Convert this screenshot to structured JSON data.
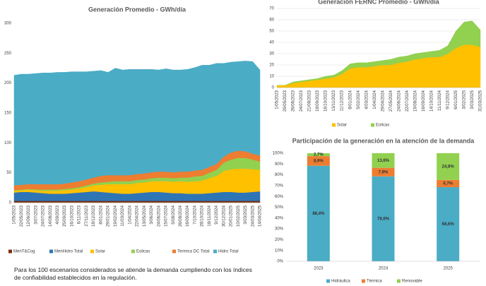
{
  "chart_data": [
    {
      "type": "area",
      "title": "Generación Promedio - GWh/día",
      "categories": [
        "1/05/2023",
        "22/05/2023",
        "12/06/2023",
        "3/07/2023",
        "24/07/2023",
        "14/08/2023",
        "4/09/2023",
        "25/09/2023",
        "16/10/2023",
        "6/11/2023",
        "27/11/2023",
        "18/12/2023",
        "8/01/2024",
        "29/01/2024",
        "19/02/2024",
        "11/03/2024",
        "1/04/2024",
        "22/04/2024",
        "13/05/2024",
        "3/06/2024",
        "24/06/2024",
        "15/07/2024",
        "5/08/2024",
        "26/08/2024",
        "16/09/2024",
        "7/10/2024",
        "28/10/2024",
        "18/11/2024",
        "9/12/2024",
        "30/12/2024",
        "20/01/2025",
        "10/02/2025",
        "3/03/2025",
        "24/03/2025",
        "14/04/2025"
      ],
      "series": [
        {
          "name": "MenT&Cog",
          "color": "#7a2e0e",
          "values": [
            3,
            3,
            3,
            3,
            3,
            3,
            3,
            3,
            3,
            3,
            3,
            3,
            3,
            3,
            3,
            3,
            3,
            3,
            3,
            3,
            3,
            3,
            3,
            3,
            3,
            3,
            3,
            3,
            3,
            3,
            3,
            3,
            3,
            3,
            3
          ]
        },
        {
          "name": "MenHidro Total",
          "color": "#2e75b6",
          "values": [
            14,
            15,
            15,
            14,
            13,
            12,
            12,
            12,
            13,
            14,
            15,
            16,
            15,
            14,
            13,
            12,
            12,
            13,
            14,
            15,
            15,
            14,
            13,
            13,
            12,
            12,
            12,
            13,
            14,
            15,
            15,
            14,
            14,
            15,
            16
          ]
        },
        {
          "name": "Solar",
          "color": "#ffc000",
          "values": [
            3,
            3,
            4,
            4,
            4,
            5,
            5,
            6,
            6,
            7,
            8,
            10,
            12,
            14,
            15,
            16,
            16,
            17,
            17,
            18,
            18,
            19,
            19,
            20,
            20,
            21,
            22,
            25,
            28,
            35,
            38,
            40,
            40,
            38,
            36
          ]
        },
        {
          "name": "Eolicas",
          "color": "#92d050",
          "values": [
            1,
            1,
            1,
            1,
            2,
            2,
            2,
            2,
            2,
            2,
            3,
            3,
            4,
            4,
            5,
            5,
            5,
            5,
            5,
            5,
            6,
            6,
            6,
            6,
            7,
            8,
            8,
            9,
            10,
            14,
            16,
            18,
            18,
            16,
            14
          ]
        },
        {
          "name": "Termica DC Total",
          "color": "#ed7d31",
          "values": [
            8,
            8,
            8,
            9,
            9,
            9,
            9,
            9,
            10,
            10,
            10,
            10,
            11,
            11,
            10,
            10,
            10,
            10,
            10,
            10,
            10,
            10,
            10,
            10,
            10,
            10,
            10,
            10,
            10,
            10,
            12,
            12,
            11,
            10,
            10
          ]
        },
        {
          "name": "Hidro Total",
          "color": "#4bacc6",
          "values": [
            184,
            185,
            184,
            185,
            186,
            186,
            187,
            186,
            185,
            183,
            180,
            178,
            176,
            172,
            179,
            176,
            177,
            175,
            174,
            172,
            170,
            172,
            171,
            170,
            171,
            172,
            175,
            170,
            168,
            156,
            151,
            149,
            151,
            154,
            143
          ]
        }
      ],
      "ylim": [
        0,
        300
      ],
      "yticks": [
        0,
        50,
        100,
        150,
        200,
        250,
        300
      ],
      "grid": false
    },
    {
      "type": "area",
      "title": "Generación FERNC Promedio - GWh/día",
      "categories": [
        "1/05/2023",
        "29/05/2023",
        "26/06/2023",
        "24/07/2023",
        "21/08/2023",
        "18/09/2023",
        "16/10/2023",
        "13/11/2023",
        "11/12/2023",
        "8/01/2024",
        "5/02/2024",
        "4/03/2024",
        "1/04/2024",
        "29/04/2024",
        "27/05/2024",
        "24/06/2024",
        "22/07/2024",
        "19/08/2024",
        "16/09/2024",
        "14/10/2024",
        "11/11/2024",
        "9/12/2024",
        "6/01/2025",
        "3/02/2025",
        "3/03/2025",
        "31/03/2025"
      ],
      "series": [
        {
          "name": "Solar",
          "color": "#ffc000",
          "values": [
            2,
            2,
            4,
            5,
            6,
            7,
            8,
            9,
            12,
            17,
            18,
            18,
            19,
            20,
            20,
            22,
            23,
            25,
            26,
            27,
            27,
            30,
            35,
            38,
            38,
            36
          ]
        },
        {
          "name": "Eolicas",
          "color": "#92d050",
          "values": [
            0,
            0,
            1,
            1,
            1,
            1,
            2,
            2,
            3,
            4,
            4,
            4,
            4,
            4,
            5,
            5,
            5,
            5,
            5,
            5,
            6,
            7,
            15,
            20,
            21,
            15
          ]
        }
      ],
      "ylim": [
        0,
        70
      ],
      "yticks": [
        0,
        10,
        20,
        30,
        40,
        50,
        60,
        70
      ],
      "grid": true
    },
    {
      "type": "bar",
      "title": "Participación de la generación en la atención de la demanda",
      "categories": [
        "2023",
        "2024",
        "2025"
      ],
      "series": [
        {
          "name": "Hidráulica",
          "color": "#4bacc6",
          "values": [
            88.4,
            78.6,
            68.6
          ],
          "value_labels": [
            "88,4%",
            "78,6%",
            "68,6%"
          ]
        },
        {
          "name": "Térmica",
          "color": "#ed7d31",
          "values": [
            8.9,
            7.9,
            6.7
          ],
          "value_labels": [
            "8,9%",
            "7,9%",
            "6,7%"
          ]
        },
        {
          "name": "Renovable",
          "color": "#92d050",
          "values": [
            2.7,
            13.6,
            24.8
          ],
          "value_labels": [
            "2,7%",
            "13,6%",
            "24,8%"
          ]
        }
      ],
      "ylim": [
        0,
        100
      ],
      "yticks": [
        {
          "value": 0,
          "label": "0%"
        },
        {
          "value": 10,
          "label": "10%"
        },
        {
          "value": 20,
          "label": "20%"
        },
        {
          "value": 30,
          "label": "30%"
        },
        {
          "value": 40,
          "label": "40%"
        },
        {
          "value": 50,
          "label": "50%"
        },
        {
          "value": 60,
          "label": "60%"
        },
        {
          "value": 70,
          "label": "70%"
        },
        {
          "value": 80,
          "label": "80%"
        },
        {
          "value": 90,
          "label": "90%"
        },
        {
          "value": 100,
          "label": "100%"
        }
      ],
      "grid": false
    }
  ],
  "footnote": "Para los 100 escenarios considerados se atiende la demanda  cumpliendo con los índices de confiabilidad establecidos en la  regulación."
}
